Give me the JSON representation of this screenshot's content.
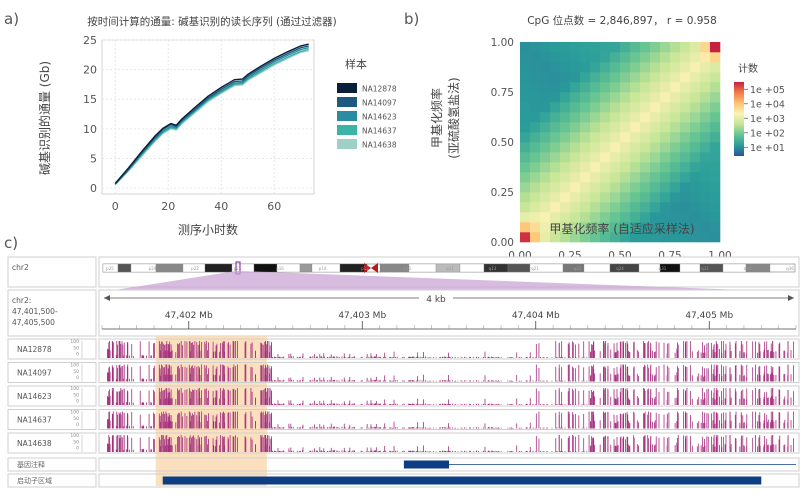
{
  "panel_labels": {
    "a": "a)",
    "b": "b)",
    "c": "c)"
  },
  "chart_data": [
    {
      "type": "line",
      "panel": "a",
      "title": "按时间计算的通量: 碱基识别的读长序列 (通过过滤器)",
      "xlabel": "测序小时数",
      "ylabel": "碱基识别的通量 (Gb)",
      "xlim": [
        -5,
        75
      ],
      "ylim": [
        -1,
        25
      ],
      "xticks": [
        0,
        20,
        40,
        60
      ],
      "yticks": [
        0,
        5,
        10,
        15,
        20,
        25
      ],
      "grid": true,
      "legend_title": "样本",
      "legend_position": "right",
      "series": [
        {
          "name": "NA12878",
          "color": "#0b1f3b",
          "x": [
            0,
            5,
            10,
            15,
            18,
            21,
            23,
            25,
            30,
            35,
            40,
            45,
            48,
            50,
            55,
            60,
            65,
            70,
            73
          ],
          "y": [
            0.8,
            3.4,
            6.2,
            8.8,
            10.1,
            10.9,
            10.6,
            11.6,
            13.6,
            15.5,
            17.0,
            18.3,
            18.4,
            19.2,
            20.6,
            21.9,
            23.0,
            24.0,
            24.3
          ]
        },
        {
          "name": "NA14097",
          "color": "#1c5a80",
          "x": [
            0,
            5,
            10,
            15,
            18,
            21,
            23,
            25,
            30,
            35,
            40,
            45,
            48,
            50,
            55,
            60,
            65,
            70,
            73
          ],
          "y": [
            0.7,
            3.2,
            6.0,
            8.5,
            9.9,
            10.7,
            10.4,
            11.4,
            13.3,
            15.2,
            16.7,
            18.0,
            18.1,
            18.9,
            20.3,
            21.6,
            22.7,
            23.7,
            24.0
          ]
        },
        {
          "name": "NA14623",
          "color": "#2a8c9e",
          "x": [
            0,
            5,
            10,
            15,
            18,
            21,
            23,
            25,
            30,
            35,
            40,
            45,
            48,
            50,
            55,
            60,
            65,
            70,
            73
          ],
          "y": [
            0.7,
            3.1,
            5.8,
            8.3,
            9.6,
            10.4,
            10.2,
            11.2,
            13.1,
            15.0,
            16.4,
            17.7,
            17.8,
            18.6,
            20.0,
            21.3,
            22.4,
            23.4,
            23.7
          ]
        },
        {
          "name": "NA14637",
          "color": "#3bb3a5",
          "x": [
            0,
            5,
            10,
            15,
            18,
            21,
            23,
            25,
            30,
            35,
            40,
            45,
            48,
            50,
            55,
            60,
            65,
            70,
            73
          ],
          "y": [
            0.6,
            3.0,
            5.6,
            8.1,
            9.4,
            10.2,
            10.0,
            11.0,
            12.9,
            14.8,
            16.2,
            17.5,
            17.6,
            18.4,
            19.7,
            21.0,
            22.1,
            23.1,
            23.4
          ]
        },
        {
          "name": "NA14638",
          "color": "#9fd0c8",
          "x": [
            0,
            5,
            10,
            15,
            18,
            21,
            23,
            25,
            30,
            35,
            40,
            45,
            48,
            50,
            55,
            60,
            65,
            70,
            73
          ],
          "y": [
            0.6,
            2.9,
            5.4,
            7.9,
            9.2,
            10.0,
            9.8,
            10.8,
            12.7,
            14.6,
            16.0,
            17.3,
            17.4,
            18.2,
            19.5,
            20.8,
            21.9,
            22.9,
            23.2
          ]
        }
      ]
    },
    {
      "type": "heatmap",
      "panel": "b",
      "title": "CpG 位点数 = 2,846,897， r = 0.958",
      "xlabel": "甲基化频率 (自适应采样法)",
      "ylabel_line1": "甲基化频率",
      "ylabel_line2": "(亚硫酸氢盐法)",
      "xlim": [
        0,
        1
      ],
      "ylim": [
        0,
        1
      ],
      "xticks": [
        "0.00",
        "0.25",
        "0.50",
        "0.75",
        "1.00"
      ],
      "yticks": [
        "0.00",
        "0.25",
        "0.50",
        "0.75",
        "1.00"
      ],
      "bins": 20,
      "colorbar_title": "计数",
      "colorbar_scale": "log",
      "colorbar_ticks": [
        "1e +05",
        "1e +04",
        "1e +03",
        "1e +02",
        "1e +01"
      ],
      "colorbar_tick_values": [
        5,
        4,
        3,
        2,
        1
      ],
      "colorbar_range_log10": [
        0.4,
        5.5
      ],
      "peak_corners_log10": {
        "top_right": 5.4,
        "bottom_left": 5.2,
        "top_left": 0.6,
        "bottom_right": 1.0
      },
      "colormap": [
        "#2e4f9e",
        "#2a9e9a",
        "#66c493",
        "#c4e596",
        "#fbf2b4",
        "#fdc374",
        "#f47a48",
        "#c5203f"
      ]
    },
    {
      "type": "track",
      "panel": "c",
      "chromosome": "chr2",
      "region_label_line1": "chr2:",
      "region_label_line2": "47,401,500-",
      "region_label_line3": "47,405,500",
      "scale_label": "4 kb",
      "axis_ticks": [
        "47,402 Mb",
        "47,403 Mb",
        "47,404 Mb",
        "47,405 Mb"
      ],
      "axis_tick_values": [
        47402,
        47403,
        47404,
        47405
      ],
      "region": [
        47401500,
        47405500
      ],
      "ideogram_bands": [
        "p25",
        "p24",
        "p22",
        "p21",
        "p16",
        "p14",
        "p12",
        "p11",
        "q11",
        "q13",
        "q21",
        "q23",
        "q24",
        "q31",
        "q32",
        "q34",
        "q36"
      ],
      "tracks": [
        {
          "name": "NA12878",
          "ticks": [
            "100",
            "50",
            "0"
          ]
        },
        {
          "name": "NA14097",
          "ticks": [
            "100",
            "50",
            "0"
          ]
        },
        {
          "name": "NA14623",
          "ticks": [
            "100",
            "50",
            "0"
          ]
        },
        {
          "name": "NA14637",
          "ticks": [
            "100",
            "50",
            "0"
          ]
        },
        {
          "name": "NA14638",
          "ticks": [
            "100",
            "50",
            "0"
          ]
        }
      ],
      "bar_color": "#a4307e",
      "highlight_color": "#fbd9b0",
      "highlight_region": [
        47401810,
        47402450
      ],
      "gene_track_label": "基因注释",
      "gene_feature": [
        47403240,
        47403500
      ],
      "promoter_track_label": "启动子区域",
      "promoter_feature": [
        47401850,
        47405300
      ],
      "feature_color": "#0d3e84"
    }
  ]
}
